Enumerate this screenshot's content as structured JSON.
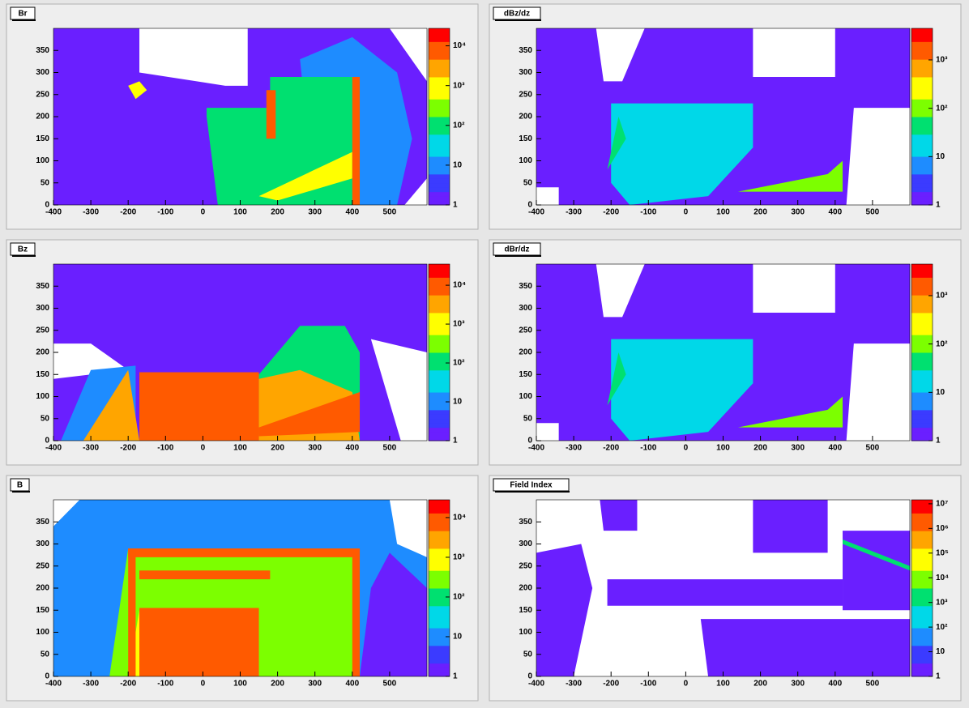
{
  "chart_data": [
    {
      "type": "heatmap",
      "title": "Br",
      "xlim": [
        -400,
        600
      ],
      "ylim": [
        0,
        400
      ],
      "xticks": [
        -400,
        -300,
        -200,
        -100,
        0,
        100,
        200,
        300,
        400,
        500
      ],
      "yticks": [
        0,
        50,
        100,
        150,
        200,
        250,
        300,
        350
      ],
      "log_z": true,
      "zlim": [
        1,
        27500
      ],
      "zticks": [
        1,
        10,
        {
          "value": 100,
          "label": "10²"
        },
        {
          "value": 1000,
          "label": "10³"
        },
        {
          "value": 10000,
          "label": "10⁴"
        }
      ]
    },
    {
      "type": "heatmap",
      "title": "dBz/dz",
      "xlim": [
        -400,
        600
      ],
      "ylim": [
        0,
        400
      ],
      "xticks": [
        -400,
        -300,
        -200,
        -100,
        0,
        100,
        200,
        300,
        400,
        500
      ],
      "yticks": [
        0,
        50,
        100,
        150,
        200,
        250,
        300,
        350
      ],
      "log_z": true,
      "zlim": [
        1,
        4500
      ],
      "zticks": [
        1,
        10,
        {
          "value": 100,
          "label": "10²"
        },
        {
          "value": 1000,
          "label": "10³"
        }
      ]
    },
    {
      "type": "heatmap",
      "title": "Bz",
      "xlim": [
        -400,
        600
      ],
      "ylim": [
        0,
        400
      ],
      "xticks": [
        -400,
        -300,
        -200,
        -100,
        0,
        100,
        200,
        300,
        400,
        500
      ],
      "yticks": [
        0,
        50,
        100,
        150,
        200,
        250,
        300,
        350
      ],
      "log_z": true,
      "zlim": [
        1,
        35000
      ],
      "zticks": [
        1,
        10,
        {
          "value": 100,
          "label": "10²"
        },
        {
          "value": 1000,
          "label": "10³"
        },
        {
          "value": 10000,
          "label": "10⁴"
        }
      ]
    },
    {
      "type": "heatmap",
      "title": "dBr/dz",
      "xlim": [
        -400,
        600
      ],
      "ylim": [
        0,
        400
      ],
      "xticks": [
        -400,
        -300,
        -200,
        -100,
        0,
        100,
        200,
        300,
        400,
        500
      ],
      "yticks": [
        0,
        50,
        100,
        150,
        200,
        250,
        300,
        350
      ],
      "log_z": true,
      "zlim": [
        1,
        4500
      ],
      "zticks": [
        1,
        10,
        {
          "value": 100,
          "label": "10²"
        },
        {
          "value": 1000,
          "label": "10³"
        }
      ]
    },
    {
      "type": "heatmap",
      "title": "B",
      "xlim": [
        -400,
        600
      ],
      "ylim": [
        0,
        400
      ],
      "xticks": [
        -400,
        -300,
        -200,
        -100,
        0,
        100,
        200,
        300,
        400,
        500
      ],
      "yticks": [
        0,
        50,
        100,
        150,
        200,
        250,
        300,
        350
      ],
      "log_z": true,
      "zlim": [
        1,
        28000
      ],
      "zticks": [
        1,
        10,
        {
          "value": 100,
          "label": "10²"
        },
        {
          "value": 1000,
          "label": "10³"
        },
        {
          "value": 10000,
          "label": "10⁴"
        }
      ]
    },
    {
      "type": "heatmap",
      "title": "Field Index",
      "xlim": [
        -400,
        600
      ],
      "ylim": [
        0,
        400
      ],
      "xticks": [
        -400,
        -300,
        -200,
        -100,
        0,
        100,
        200,
        300,
        400,
        500
      ],
      "yticks": [
        0,
        50,
        100,
        150,
        200,
        250,
        300,
        350
      ],
      "log_z": true,
      "zlim": [
        1,
        14500000
      ],
      "zticks": [
        1,
        10,
        {
          "value": 100,
          "label": "10²"
        },
        {
          "value": 1000,
          "label": "10³"
        },
        {
          "value": 10000,
          "label": "10⁴"
        },
        {
          "value": 100000,
          "label": "10⁵"
        },
        {
          "value": 1000000,
          "label": "10⁶"
        },
        {
          "value": 10000000,
          "label": "10⁷"
        }
      ]
    }
  ]
}
